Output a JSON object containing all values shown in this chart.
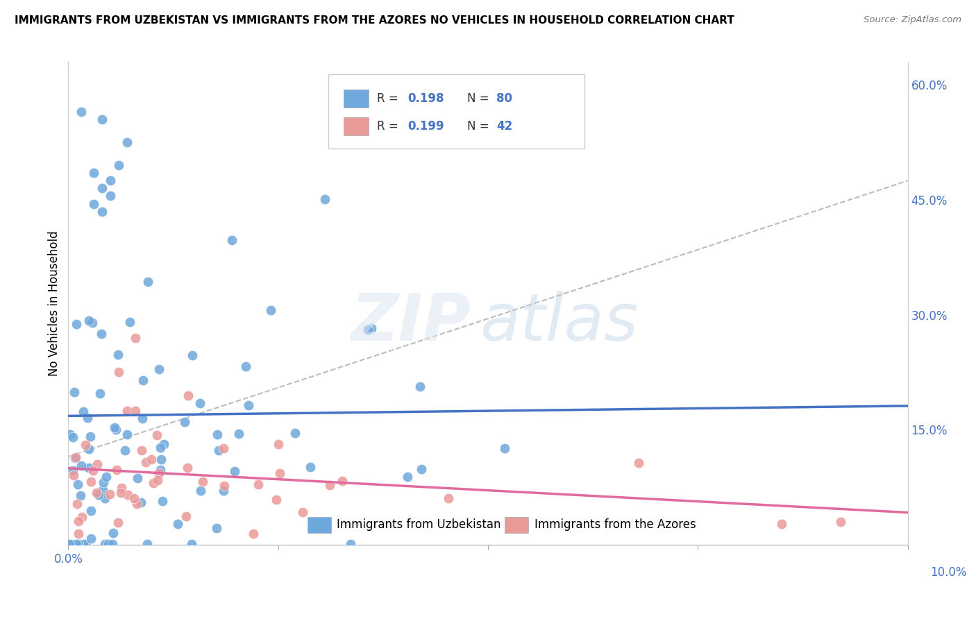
{
  "title": "IMMIGRANTS FROM UZBEKISTAN VS IMMIGRANTS FROM THE AZORES NO VEHICLES IN HOUSEHOLD CORRELATION CHART",
  "source": "Source: ZipAtlas.com",
  "ylabel": "No Vehicles in Household",
  "right_yticks": [
    "60.0%",
    "45.0%",
    "30.0%",
    "15.0%"
  ],
  "right_ytick_vals": [
    0.6,
    0.45,
    0.3,
    0.15
  ],
  "legend_r1": "R = 0.198",
  "legend_n1": "N = 80",
  "legend_r2": "R = 0.199",
  "legend_n2": "N = 42",
  "color_uzbekistan": "#6fa8dc",
  "color_azores": "#ea9999",
  "trendline_uzbekistan": "#4472c4",
  "trendline_azores": "#e06c9f",
  "trendline_dashed": "#aaaaaa",
  "legend_color_blue": "#4472c4",
  "legend_color_pink": "#e06c9f",
  "watermark_zip": "ZIP",
  "watermark_atlas": "atlas"
}
